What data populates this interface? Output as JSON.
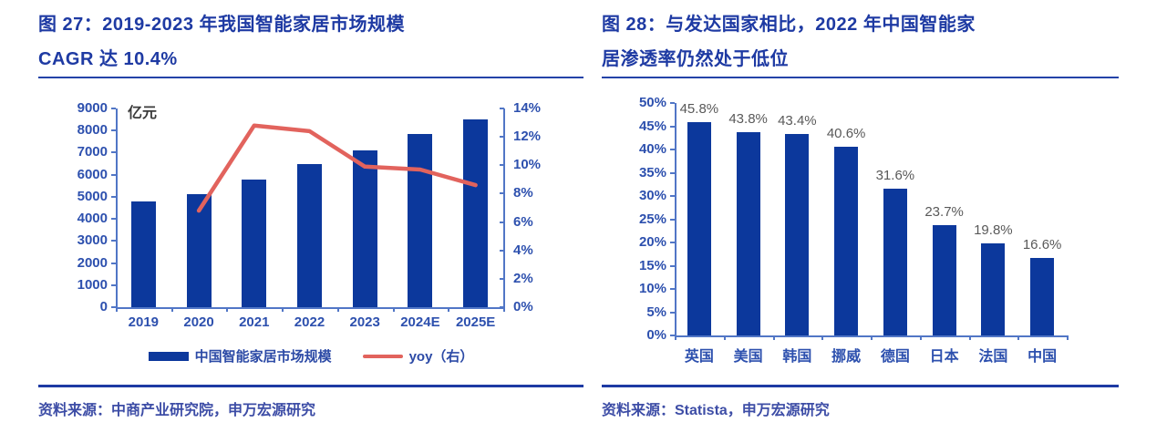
{
  "colors": {
    "bar_blue": "#0c389c",
    "line_red": "#e2635d",
    "axis_blue": "#5176c6",
    "tick_label_blue": "#2d50ae",
    "title_navy": "#1e3aa3",
    "data_label_gray": "#595959",
    "source_blue": "#3d4da6"
  },
  "figures": [
    {
      "title_line1": "图 27：2019-2023 年我国智能家居市场规模",
      "title_line2": "CAGR 达 10.4%",
      "source": "资料来源：中商产业研究院，申万宏源研究",
      "chart_data": {
        "type": "bar",
        "subtype": "bar+line combo",
        "categories": [
          "2019",
          "2020",
          "2021",
          "2022",
          "2023",
          "2024E",
          "2025E"
        ],
        "series": [
          {
            "name": "中国智能家居市场规模",
            "type": "bar",
            "axis": "left",
            "values": [
              4800,
              5100,
              5800,
              6500,
              7100,
              7850,
              8500
            ]
          },
          {
            "name": "yoy（右）",
            "type": "line",
            "axis": "right",
            "values": [
              null,
              6.8,
              12.8,
              12.4,
              9.9,
              9.7,
              8.6
            ]
          }
        ],
        "left_axis": {
          "unit": "亿元",
          "min": 0,
          "max": 9000,
          "step": 1000
        },
        "right_axis": {
          "min": 0,
          "max": 14,
          "step": 2,
          "suffix": "%"
        },
        "legend_position": "bottom",
        "grid": false
      }
    },
    {
      "title_line1": "图 28：与发达国家相比，2022 年中国智能家",
      "title_line2": "居渗透率仍然处于低位",
      "source": "资料来源：Statista，申万宏源研究",
      "chart_data": {
        "type": "bar",
        "categories": [
          "英国",
          "美国",
          "韩国",
          "挪威",
          "德国",
          "日本",
          "法国",
          "中国"
        ],
        "values": [
          45.8,
          43.8,
          43.4,
          40.6,
          31.6,
          23.7,
          19.8,
          16.6
        ],
        "data_labels": [
          "45.8%",
          "43.8%",
          "43.4%",
          "40.6%",
          "31.6%",
          "23.7%",
          "19.8%",
          "16.6%"
        ],
        "y_axis": {
          "min": 0,
          "max": 50,
          "step": 5,
          "suffix": "%"
        },
        "grid": false
      }
    }
  ]
}
